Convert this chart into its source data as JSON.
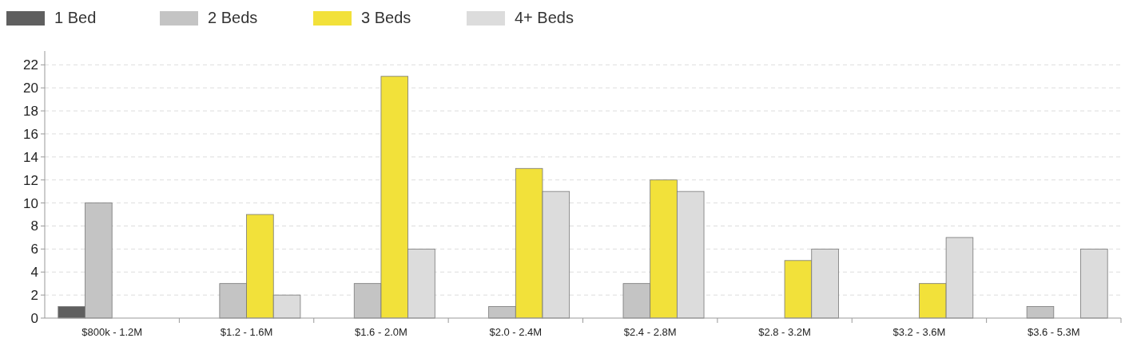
{
  "chart_data": {
    "type": "bar",
    "categories": [
      "$800k - 1.2M",
      "$1.2 - 1.6M",
      "$1.6 - 2.0M",
      "$2.0 - 2.4M",
      "$2.4 - 2.8M",
      "$2.8 - 3.2M",
      "$3.2 - 3.6M",
      "$3.6 - 5.3M"
    ],
    "series": [
      {
        "name": "1 Bed",
        "color": "#5f5f5f",
        "values": [
          1,
          0,
          0,
          0,
          0,
          0,
          0,
          0
        ]
      },
      {
        "name": "2 Beds",
        "color": "#c4c4c4",
        "values": [
          10,
          3,
          3,
          1,
          3,
          0,
          0,
          1
        ]
      },
      {
        "name": "3 Beds",
        "color": "#f2e13a",
        "values": [
          0,
          9,
          21,
          13,
          12,
          5,
          3,
          0
        ]
      },
      {
        "name": "4+ Beds",
        "color": "#dcdcdc",
        "values": [
          0,
          2,
          6,
          11,
          11,
          6,
          7,
          6
        ]
      }
    ],
    "ylim": [
      0,
      23.2
    ],
    "yticks": [
      0,
      2,
      4,
      6,
      8,
      10,
      12,
      14,
      16,
      18,
      20,
      22
    ],
    "grid": "y",
    "legend": "top left"
  }
}
